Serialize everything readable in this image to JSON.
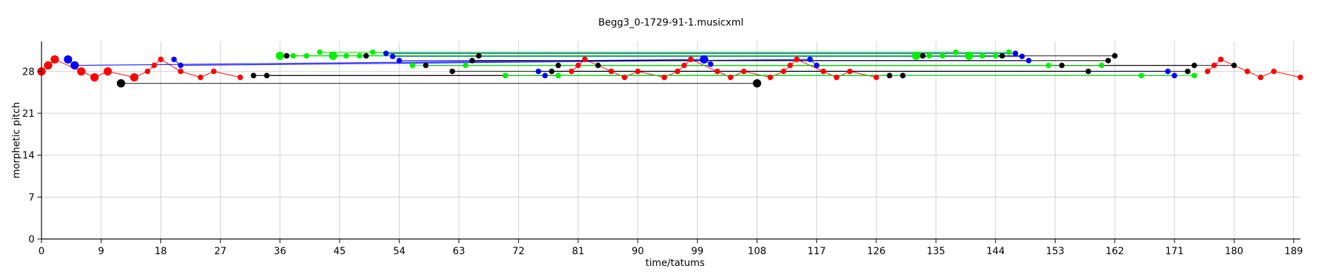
{
  "chart_data": {
    "type": "scatter",
    "title": "Begg3_0-1729-91-1.musicxml",
    "xlabel": "time/tatums",
    "ylabel": "morphetic pitch",
    "xlim": [
      0,
      190
    ],
    "ylim": [
      0,
      33
    ],
    "xticks": [
      0,
      9,
      18,
      27,
      36,
      45,
      54,
      63,
      72,
      81,
      90,
      99,
      108,
      117,
      126,
      135,
      144,
      153,
      162,
      171,
      180,
      189
    ],
    "yticks": [
      0,
      7,
      14,
      21,
      28
    ],
    "grid": true,
    "series": [
      {
        "color": "#ff0000",
        "points": [
          [
            0,
            28,
            "L"
          ],
          [
            1,
            29,
            "L"
          ],
          [
            2,
            30,
            "L"
          ],
          [
            6,
            28,
            "L"
          ],
          [
            8,
            27,
            "L"
          ],
          [
            10,
            28,
            "L"
          ],
          [
            14,
            27,
            "L"
          ],
          [
            16,
            28,
            "S"
          ],
          [
            17,
            29,
            "S"
          ],
          [
            18,
            30,
            "S"
          ],
          [
            21,
            28,
            "S"
          ],
          [
            24,
            27,
            "S"
          ],
          [
            26,
            28,
            "S"
          ],
          [
            30,
            27,
            "S"
          ],
          [
            80,
            28,
            "S"
          ],
          [
            81,
            29,
            "S"
          ],
          [
            82,
            30,
            "S"
          ],
          [
            86,
            28,
            "S"
          ],
          [
            88,
            27,
            "S"
          ],
          [
            90,
            28,
            "S"
          ],
          [
            94,
            27,
            "S"
          ],
          [
            96,
            28,
            "S"
          ],
          [
            97,
            29,
            "S"
          ],
          [
            98,
            30,
            "S"
          ],
          [
            102,
            28,
            "S"
          ],
          [
            104,
            27,
            "S"
          ],
          [
            106,
            28,
            "S"
          ],
          [
            110,
            27,
            "S"
          ],
          [
            112,
            28,
            "S"
          ],
          [
            113,
            29,
            "S"
          ],
          [
            114,
            30,
            "S"
          ],
          [
            118,
            28,
            "S"
          ],
          [
            120,
            27,
            "S"
          ],
          [
            122,
            28,
            "S"
          ],
          [
            126,
            27,
            "S"
          ],
          [
            176,
            28,
            "S"
          ],
          [
            177,
            29,
            "S"
          ],
          [
            178,
            30,
            "S"
          ],
          [
            182,
            28,
            "S"
          ],
          [
            184,
            27,
            "S"
          ],
          [
            186,
            28,
            "S"
          ],
          [
            190,
            27,
            "S"
          ]
        ],
        "segments": [
          [
            0,
            28,
            1,
            29
          ],
          [
            1,
            29,
            2,
            30
          ],
          [
            2,
            30,
            6,
            28
          ],
          [
            6,
            28,
            8,
            27
          ],
          [
            8,
            27,
            10,
            28
          ],
          [
            10,
            28,
            14,
            27
          ],
          [
            14,
            27,
            16,
            28
          ],
          [
            16,
            28,
            17,
            29
          ],
          [
            17,
            29,
            18,
            30
          ],
          [
            18,
            30,
            21,
            28
          ],
          [
            21,
            28,
            24,
            27
          ],
          [
            24,
            27,
            26,
            28
          ],
          [
            26,
            28,
            30,
            27
          ],
          [
            80,
            28,
            81,
            29
          ],
          [
            81,
            29,
            82,
            30
          ],
          [
            82,
            30,
            86,
            28
          ],
          [
            86,
            28,
            88,
            27
          ],
          [
            88,
            27,
            90,
            28
          ],
          [
            90,
            28,
            94,
            27
          ],
          [
            94,
            27,
            96,
            28
          ],
          [
            96,
            28,
            97,
            29
          ],
          [
            97,
            29,
            98,
            30
          ],
          [
            98,
            30,
            102,
            28
          ],
          [
            102,
            28,
            104,
            27
          ],
          [
            104,
            27,
            106,
            28
          ],
          [
            106,
            28,
            110,
            27
          ],
          [
            110,
            27,
            112,
            28
          ],
          [
            112,
            28,
            113,
            29
          ],
          [
            113,
            29,
            114,
            30
          ],
          [
            114,
            30,
            118,
            28
          ],
          [
            118,
            28,
            120,
            27
          ],
          [
            120,
            27,
            122,
            28
          ],
          [
            122,
            28,
            126,
            27
          ],
          [
            176,
            28,
            177,
            29
          ],
          [
            177,
            29,
            178,
            30
          ],
          [
            178,
            30,
            182,
            28
          ],
          [
            182,
            28,
            184,
            27
          ],
          [
            184,
            27,
            186,
            28
          ],
          [
            186,
            28,
            190,
            27
          ]
        ]
      },
      {
        "color": "#0000ff",
        "points": [
          [
            4,
            30,
            "L"
          ],
          [
            5,
            29,
            "L"
          ],
          [
            20,
            30,
            "S"
          ],
          [
            21,
            29,
            "S"
          ],
          [
            52,
            31,
            "S"
          ],
          [
            53,
            30.5,
            "S"
          ],
          [
            54,
            29.8,
            "S"
          ],
          [
            75,
            28,
            "S"
          ],
          [
            76,
            27.3,
            "S"
          ],
          [
            100,
            30,
            "L"
          ],
          [
            101,
            29.2,
            "S"
          ],
          [
            116,
            30,
            "S"
          ],
          [
            117,
            29,
            "S"
          ],
          [
            147,
            31,
            "S"
          ],
          [
            148,
            30.5,
            "S"
          ],
          [
            149,
            29.8,
            "S"
          ],
          [
            170,
            28,
            "S"
          ],
          [
            171,
            27.3,
            "S"
          ]
        ],
        "segments": [
          [
            4,
            30,
            5,
            29
          ],
          [
            5,
            29,
            100,
            30
          ],
          [
            20,
            30,
            21,
            29
          ],
          [
            21,
            29,
            116,
            30
          ],
          [
            52,
            31,
            147,
            31
          ],
          [
            53,
            30.5,
            148,
            30.5
          ],
          [
            54,
            29.8,
            149,
            29.8
          ],
          [
            75,
            28,
            170,
            28
          ],
          [
            76,
            27.3,
            171,
            27.3
          ],
          [
            100,
            30,
            101,
            29.2
          ],
          [
            116,
            30,
            117,
            29
          ]
        ]
      },
      {
        "color": "#000000",
        "points": [
          [
            12,
            26,
            "L"
          ],
          [
            32,
            27.3,
            "S"
          ],
          [
            34,
            27.3,
            "S"
          ],
          [
            37,
            30.6,
            "S"
          ],
          [
            49,
            30.6,
            "S"
          ],
          [
            58,
            29,
            "S"
          ],
          [
            62,
            28,
            "S"
          ],
          [
            65,
            29.8,
            "S"
          ],
          [
            66,
            30.6,
            "S"
          ],
          [
            77,
            28,
            "S"
          ],
          [
            78,
            29,
            "S"
          ],
          [
            84,
            29,
            "S"
          ],
          [
            108,
            26,
            "L"
          ],
          [
            128,
            27.3,
            "S"
          ],
          [
            130,
            27.3,
            "S"
          ],
          [
            133,
            30.6,
            "S"
          ],
          [
            145,
            30.6,
            "S"
          ],
          [
            154,
            29,
            "S"
          ],
          [
            158,
            28,
            "S"
          ],
          [
            161,
            29.8,
            "S"
          ],
          [
            162,
            30.6,
            "S"
          ],
          [
            173,
            28,
            "S"
          ],
          [
            174,
            29,
            "S"
          ],
          [
            180,
            29,
            "S"
          ]
        ],
        "segments": [
          [
            12,
            26,
            108,
            26
          ],
          [
            32,
            27.3,
            128,
            27.3
          ],
          [
            34,
            27.3,
            130,
            27.3
          ],
          [
            37,
            30.6,
            133,
            30.6
          ],
          [
            49,
            30.6,
            145,
            30.6
          ],
          [
            58,
            29,
            154,
            29
          ],
          [
            62,
            28,
            158,
            28
          ],
          [
            65,
            29.8,
            161,
            29.8
          ],
          [
            66,
            30.6,
            162,
            30.6
          ],
          [
            77,
            28,
            173,
            28
          ],
          [
            78,
            29,
            174,
            29
          ],
          [
            84,
            29,
            180,
            29
          ]
        ]
      },
      {
        "color": "#00ee00",
        "points": [
          [
            36,
            30.6,
            "L"
          ],
          [
            38,
            30.6,
            "S"
          ],
          [
            40,
            30.6,
            "S"
          ],
          [
            42,
            31.2,
            "S"
          ],
          [
            44,
            30.6,
            "L"
          ],
          [
            46,
            30.6,
            "S"
          ],
          [
            48,
            30.6,
            "S"
          ],
          [
            50,
            31.2,
            "S"
          ],
          [
            56,
            29,
            "S"
          ],
          [
            64,
            29,
            "S"
          ],
          [
            70,
            27.3,
            "S"
          ],
          [
            78,
            27.3,
            "S"
          ],
          [
            132,
            30.6,
            "L"
          ],
          [
            134,
            30.6,
            "S"
          ],
          [
            136,
            30.6,
            "S"
          ],
          [
            138,
            31.2,
            "S"
          ],
          [
            140,
            30.6,
            "L"
          ],
          [
            142,
            30.6,
            "S"
          ],
          [
            144,
            30.6,
            "S"
          ],
          [
            146,
            31.2,
            "S"
          ],
          [
            152,
            29,
            "S"
          ],
          [
            160,
            29,
            "S"
          ],
          [
            166,
            27.3,
            "S"
          ],
          [
            174,
            27.3,
            "S"
          ]
        ],
        "segments": [
          [
            36,
            30.6,
            132,
            30.6
          ],
          [
            38,
            30.6,
            134,
            30.6
          ],
          [
            40,
            30.6,
            136,
            30.6
          ],
          [
            42,
            31.2,
            138,
            31.2
          ],
          [
            44,
            30.6,
            140,
            30.6
          ],
          [
            46,
            30.6,
            142,
            30.6
          ],
          [
            48,
            30.6,
            144,
            30.6
          ],
          [
            50,
            31.2,
            146,
            31.2
          ],
          [
            56,
            29,
            152,
            29
          ],
          [
            64,
            29,
            160,
            29
          ],
          [
            70,
            27.3,
            166,
            27.3
          ],
          [
            78,
            27.3,
            174,
            27.3
          ]
        ]
      }
    ]
  }
}
